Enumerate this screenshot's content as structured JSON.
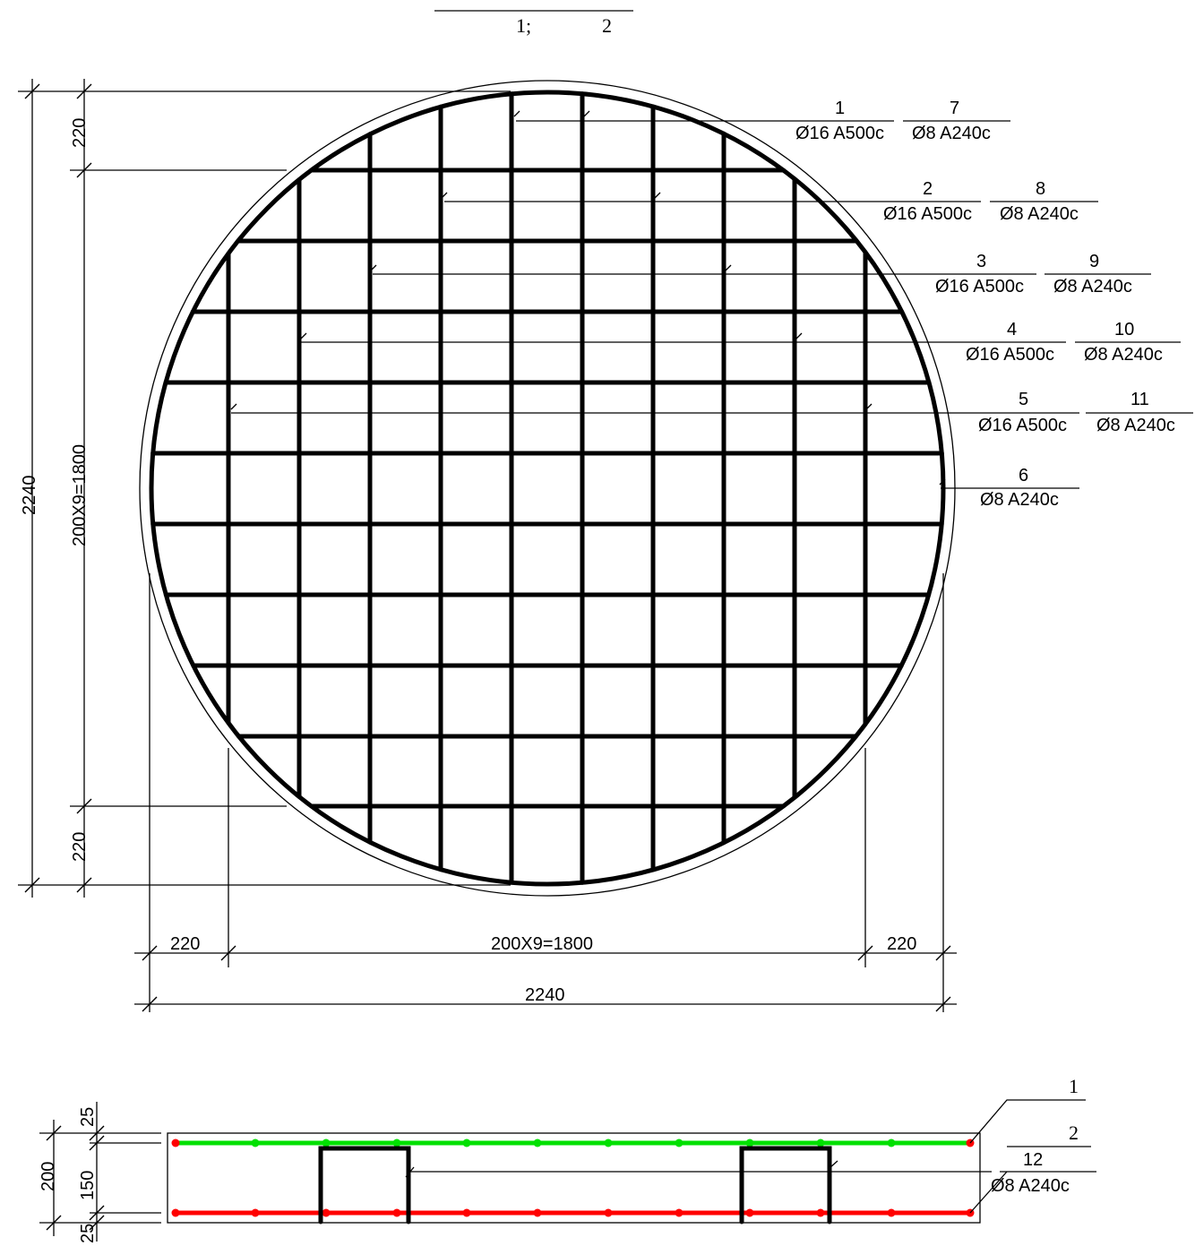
{
  "title": {
    "left": "1;",
    "right": "2"
  },
  "plan_callouts": [
    {
      "num": "1",
      "label": "Ø16  A500c",
      "num2": "7",
      "label2": "Ø8  A240c"
    },
    {
      "num": "2",
      "label": "Ø16  A500c",
      "num2": "8",
      "label2": "Ø8  A240c"
    },
    {
      "num": "3",
      "label": "Ø16  A500c",
      "num2": "9",
      "label2": "Ø8  A240c"
    },
    {
      "num": "4",
      "label": "Ø16  A500c",
      "num2": "10",
      "label2": "Ø8  A240c"
    },
    {
      "num": "5",
      "label": "Ø16  A500c",
      "num2": "11",
      "label2": "Ø8  A240c"
    },
    {
      "num": "6",
      "label": "Ø8  A240c"
    }
  ],
  "plan_dims": {
    "vertical_total": "2240",
    "vertical_top": "220",
    "vertical_mid": "200X9=1800",
    "vertical_bottom": "220",
    "horizontal_left": "220",
    "horizontal_mid": "200X9=1800",
    "horizontal_right": "220",
    "horizontal_total": "2240"
  },
  "section": {
    "dim_total": "200",
    "dim_top": "25",
    "dim_mid": "150",
    "dim_bottom": "25",
    "callout_top_num": "1",
    "callout_bottom_num": "2",
    "callout_stirrup_num": "12",
    "callout_stirrup_label": "Ø8  A240c",
    "top_bar_color": "#00e000",
    "bottom_bar_color": "#ff0000"
  }
}
